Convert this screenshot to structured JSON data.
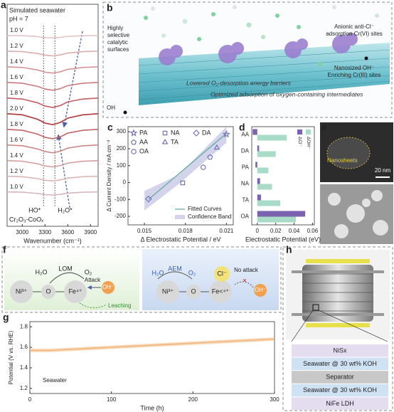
{
  "panel_labels": [
    "a",
    "b",
    "c",
    "d",
    "e",
    "f",
    "g",
    "h"
  ],
  "chart_data": [
    {
      "type": "line",
      "legend": "curve-left",
      "texts": [
        "Simulated seawater",
        "pH = 7"
      ],
      "sample": "Cr₂O₃-CoOₓ",
      "xlabel": "Wavenumber (cm⁻¹)",
      "x": [
        2800,
        3000,
        3200,
        3300,
        3400,
        3500,
        3600,
        3800,
        4000
      ],
      "xlim": [
        2800,
        4000
      ],
      "xticks": [
        3000,
        3300,
        3600,
        3900
      ],
      "ylim": [
        -2.2,
        12
      ],
      "vlines": [
        {
          "value": 3280,
          "label": "HO*"
        },
        {
          "value": 3430,
          "label": "H₂O*"
        }
      ],
      "series": [
        {
          "name": "1.0 V",
          "color": "#e4c4c6",
          "values": [
            10,
            9.99,
            9.93,
            9.87,
            9.85,
            9.88,
            9.94,
            9.99,
            10
          ]
        },
        {
          "name": "1.2 V",
          "color": "#dcacae",
          "values": [
            9,
            8.97,
            8.85,
            8.75,
            8.7,
            8.76,
            8.88,
            8.97,
            9
          ]
        },
        {
          "name": "1.4 V",
          "color": "#d49496",
          "values": [
            8,
            7.96,
            7.8,
            7.66,
            7.6,
            7.68,
            7.84,
            7.96,
            8
          ]
        },
        {
          "name": "1.6 V",
          "color": "#ca7a7c",
          "values": [
            7,
            6.95,
            6.75,
            6.58,
            6.5,
            6.6,
            6.8,
            6.95,
            7
          ]
        },
        {
          "name": "1.8 V",
          "color": "#bf5e5e",
          "values": [
            6,
            5.94,
            5.7,
            5.49,
            5.4,
            5.52,
            5.76,
            5.94,
            6
          ]
        },
        {
          "name": "2.0 V",
          "color": "#b03636",
          "values": [
            5,
            4.93,
            4.65,
            4.4,
            4.3,
            4.44,
            4.72,
            4.93,
            5
          ]
        },
        {
          "name": "1.8 V",
          "color": "#c26664",
          "values": [
            4,
            3.94,
            3.7,
            3.49,
            3.4,
            3.52,
            3.76,
            3.94,
            4
          ]
        },
        {
          "name": "1.6 V",
          "color": "#cc8684",
          "values": [
            3,
            2.95,
            2.75,
            2.58,
            2.5,
            2.6,
            2.8,
            2.95,
            3
          ]
        },
        {
          "name": "1.4 V",
          "color": "#d69e9e",
          "values": [
            2,
            1.96,
            1.8,
            1.66,
            1.6,
            1.68,
            1.84,
            1.96,
            2
          ]
        },
        {
          "name": "1.2 V",
          "color": "#dfb4b4",
          "values": [
            1,
            0.97,
            0.85,
            0.75,
            0.7,
            0.76,
            0.88,
            0.97,
            1
          ]
        },
        {
          "name": "1.0 V",
          "color": "#d6b6c2",
          "values": [
            0,
            -0.02,
            -0.1,
            -0.17,
            -0.2,
            -0.16,
            -0.08,
            -0.02,
            0
          ]
        }
      ]
    },
    {
      "type": "scatter",
      "xlabel": "Δ Electrostatic Potential / eV",
      "ylabel": "Δ Current Density / mA cm⁻²",
      "xlim": [
        0.0138,
        0.0215
      ],
      "xticks": [
        0.015,
        0.018,
        0.021
      ],
      "ylim": [
        -250,
        330
      ],
      "yticks": [
        -200,
        -100,
        0,
        100,
        200,
        300
      ],
      "color": "#6b6bb5",
      "series": [
        {
          "name": "PA",
          "marker": "star",
          "x": [
            0.021
          ],
          "values": [
            285
          ]
        },
        {
          "name": "NA",
          "marker": "square",
          "x": [
            0.0178
          ],
          "values": [
            -2
          ]
        },
        {
          "name": "DA",
          "marker": "diamond",
          "x": [
            0.0153
          ],
          "values": [
            -97
          ]
        },
        {
          "name": "AA",
          "marker": "pentagon",
          "x": [
            0.0198
          ],
          "values": [
            150
          ]
        },
        {
          "name": "TA",
          "marker": "triangle",
          "x": [
            0.0203
          ],
          "values": [
            205
          ]
        },
        {
          "name": "OA",
          "marker": "circle",
          "x": [
            0.0193
          ],
          "values": [
            90
          ]
        }
      ],
      "fit": {
        "name": "Fitted Curves",
        "color": "#5aa89e",
        "x": [
          0.0153,
          0.021
        ],
        "values": [
          -100,
          290
        ]
      },
      "band": {
        "name": "Confidence Band",
        "color": "#d3d3ec",
        "x": [
          0.015,
          0.0175,
          0.021
        ],
        "lower": [
          -165,
          -10,
          235
        ],
        "upper": [
          -50,
          45,
          330
        ]
      }
    },
    {
      "type": "barh",
      "xlabel": "Electrostatic Potential (eV)",
      "categories": [
        "AA",
        "DA",
        "PA",
        "NA",
        "TA",
        "OA"
      ],
      "xlim": [
        -0.006,
        0.062
      ],
      "xticks": [
        0,
        0.02,
        0.04,
        0.06
      ],
      "series": [
        {
          "name": "ΔCl⁻",
          "color": "#7a62b0",
          "values": [
            -0.005,
            0.002,
            -0.002,
            0.003,
            0.004,
            0.052
          ]
        },
        {
          "name": "ΔOH⁻",
          "color": "#a8dcc8",
          "values": [
            0.032,
            0.02,
            0.012,
            0.016,
            0.025,
            0.042
          ]
        }
      ]
    },
    {
      "type": "line",
      "legend": "lower-left",
      "xlabel": "Time (h)",
      "ylabel": "Potential (V vs. RHE)",
      "x": [
        0,
        25,
        50,
        75,
        100,
        125,
        150,
        175,
        200,
        225,
        250,
        275,
        300
      ],
      "xlim": [
        0,
        300
      ],
      "xticks": [
        0,
        100,
        200,
        300
      ],
      "ylim": [
        1.15,
        1.85
      ],
      "yticks": [
        1.2,
        1.4,
        1.6,
        1.8
      ],
      "series": [
        {
          "name": "Seawater",
          "color": "#f0b274",
          "values": [
            1.57,
            1.57,
            1.58,
            1.59,
            1.6,
            1.61,
            1.62,
            1.63,
            1.64,
            1.65,
            1.66,
            1.67,
            1.68
          ]
        }
      ]
    }
  ],
  "diagram_b": {
    "surface_label": [
      "Highly",
      "selective",
      "catalytic",
      "surfaces"
    ],
    "anionic_label": [
      "Anionic anti-Cl⁻",
      "adsorption Cr(VI) sites"
    ],
    "nanosized_label": [
      "Nanosized OH⁻",
      "Enriching Cr(III) sites"
    ],
    "lowered": "Lowered O₂-desorption energy barriers",
    "optimized": "Optimized adsorption of oxygen-containing intermediates",
    "oh": "OH"
  },
  "images_e": {
    "nanosheets": "Nanosheets",
    "scale_bar": "20 nm"
  },
  "diagram_f": {
    "left": {
      "ni": "Ni³⁺",
      "o": "O",
      "fe": "Fe⁴⁺",
      "h2o": "H₂O",
      "mech": "LOM",
      "o2": "O₂",
      "attack": "Attack",
      "oh": "OH⁻",
      "leaching": "Leaching"
    },
    "right": {
      "h2o": "H₂O",
      "mech": "AEM",
      "o2": "O₂",
      "cl": "Cl⁻",
      "no_attack": "No attack",
      "ni": "Ni³⁺",
      "o": "O",
      "fe": "Fe<⁴⁺",
      "oh": "OH⁻"
    }
  },
  "device_h": {
    "layers": [
      "NiSx",
      "Seawater @ 30 wt% KOH",
      "Separator",
      "Seawater @ 30 wt% KOH",
      "NiFe LDH"
    ]
  }
}
